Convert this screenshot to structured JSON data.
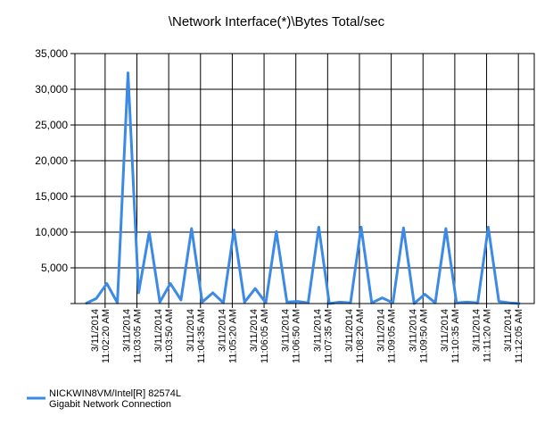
{
  "chart_data": {
    "type": "line",
    "title": "\\Network Interface(*)\\Bytes Total/sec",
    "ylim": [
      0,
      35000
    ],
    "yticks": [
      "35,000",
      "30,000",
      "25,000",
      "20,000",
      "15,000",
      "10,000",
      "5,000"
    ],
    "grid": true,
    "x_tick_labels": [
      {
        "date": "3/11/2014",
        "time": "11:02:20 AM"
      },
      {
        "date": "3/11/2014",
        "time": "11:03:05 AM"
      },
      {
        "date": "3/11/2014",
        "time": "11:03:50 AM"
      },
      {
        "date": "3/11/2014",
        "time": "11:04:35 AM"
      },
      {
        "date": "3/11/2014",
        "time": "11:05:20 AM"
      },
      {
        "date": "3/11/2014",
        "time": "11:06:05 AM"
      },
      {
        "date": "3/11/2014",
        "time": "11:06:50 AM"
      },
      {
        "date": "3/11/2014",
        "time": "11:07:35 AM"
      },
      {
        "date": "3/11/2014",
        "time": "11:08:20 AM"
      },
      {
        "date": "3/11/2014",
        "time": "11:09:05 AM"
      },
      {
        "date": "3/11/2014",
        "time": "11:09:50 AM"
      },
      {
        "date": "3/11/2014",
        "time": "11:10:35 AM"
      },
      {
        "date": "3/11/2014",
        "time": "11:11:20 AM"
      },
      {
        "date": "3/11/2014",
        "time": "11:12:05 AM"
      }
    ],
    "sample_interval_seconds": 15,
    "series": [
      {
        "name": "NICKWIN8VM/Intel[R] 82574L Gigabit Network Connection",
        "color": "#3c8ae6",
        "values": [
          0,
          700,
          2800,
          100,
          32300,
          1500,
          10000,
          200,
          2800,
          500,
          10500,
          200,
          1500,
          100,
          10300,
          200,
          2100,
          100,
          10100,
          200,
          300,
          100,
          10700,
          0,
          200,
          100,
          10700,
          100,
          800,
          100,
          10600,
          0,
          1300,
          100,
          10500,
          100,
          200,
          100,
          10700,
          300,
          100,
          0
        ]
      }
    ],
    "legend": {
      "position": "bottom-left",
      "label_line1": "NICKWIN8VM/Intel[R] 82574L",
      "label_line2": "Gigabit Network Connection"
    }
  }
}
